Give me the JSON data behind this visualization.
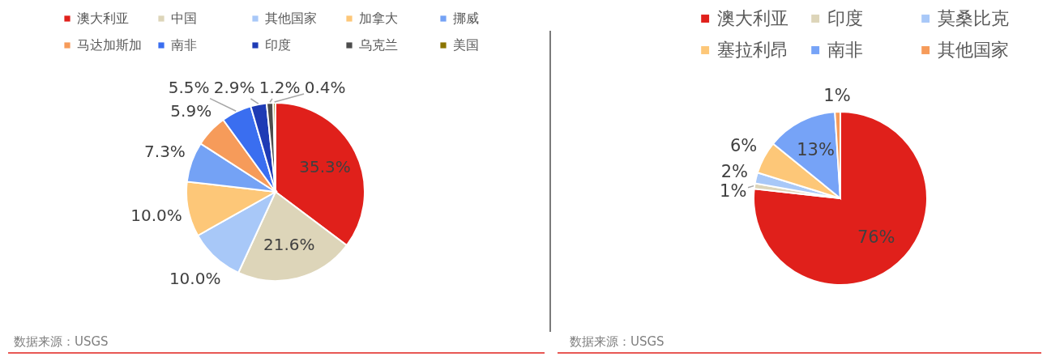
{
  "chart_data": [
    {
      "type": "pie",
      "categories": [
        "澳大利亚",
        "中国",
        "其他国家",
        "加拿大",
        "挪威",
        "马达加斯加",
        "南非",
        "印度",
        "乌克兰",
        "美国"
      ],
      "values": [
        35.3,
        21.6,
        10.0,
        10.0,
        7.3,
        5.9,
        5.5,
        2.9,
        1.2,
        0.4
      ],
      "colors": [
        "#e0201b",
        "#ddd5b9",
        "#a8c8f8",
        "#fdc778",
        "#74a2f5",
        "#f69b5a",
        "#3a6ef0",
        "#1e3bb5",
        "#4d4d4d",
        "#8b7500"
      ],
      "value_labels": [
        "35.3%",
        "21.6%",
        "10.0%",
        "10.0%",
        "7.3%",
        "5.9%",
        "5.5%",
        "2.9%",
        "1.2%",
        "0.4%"
      ],
      "legend": "top",
      "annotations": [
        "数据来源：USGS"
      ]
    },
    {
      "type": "pie",
      "categories": [
        "澳大利亚",
        "印度",
        "莫桑比克",
        "塞拉利昂",
        "南非",
        "其他国家"
      ],
      "values": [
        76,
        1,
        2,
        6,
        13,
        1
      ],
      "colors": [
        "#e0201b",
        "#ddd5b9",
        "#a8c8f8",
        "#fdc778",
        "#76a3f7",
        "#f69b5a"
      ],
      "value_labels": [
        "76%",
        "1%",
        "2%",
        "6%",
        "13%",
        "1%"
      ],
      "legend": "top",
      "annotations": [
        "数据来源：USGS"
      ]
    }
  ]
}
